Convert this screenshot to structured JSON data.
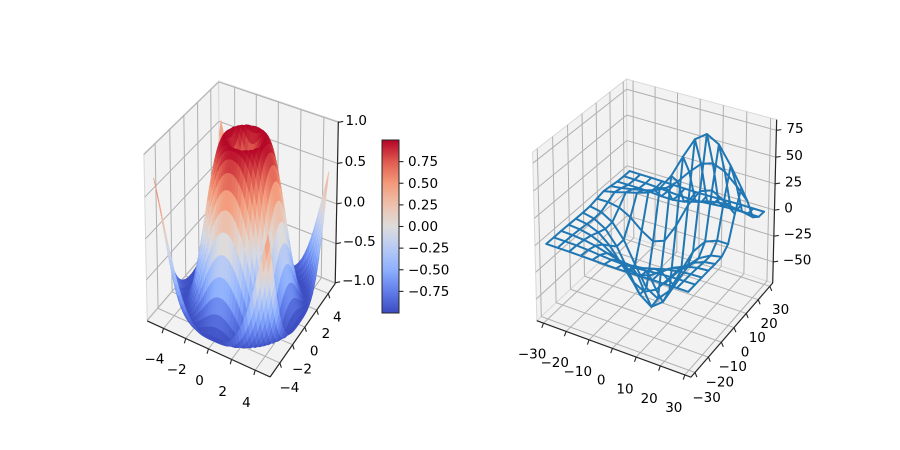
{
  "figure": {
    "background": "#ffffff"
  },
  "view": {
    "elev": 23.5,
    "azim": -60,
    "dist": 10,
    "box_aspect": [
      1.1429,
      1.1429,
      0.8571
    ]
  },
  "colors": {
    "background": "#ffffff",
    "pane_fill": "#f2f2f2",
    "pane_edge": "#d9d9d9",
    "grid_line": "#b0b0b0",
    "axis_line": "#262626",
    "tick_label": "#000000",
    "wireframe_line": "#1f77b4",
    "colorbar_outline": "#262626"
  },
  "colormap": {
    "name": "coolwarm",
    "stops": [
      [
        0.0,
        "#3b4cc0"
      ],
      [
        0.125,
        "#617dea"
      ],
      [
        0.25,
        "#8db0fe"
      ],
      [
        0.375,
        "#b7caf5"
      ],
      [
        0.5,
        "#dddcdc"
      ],
      [
        0.625,
        "#edc1ad"
      ],
      [
        0.75,
        "#f49a7a"
      ],
      [
        0.875,
        "#df5b4f"
      ],
      [
        1.0,
        "#b40426"
      ]
    ]
  },
  "chart_data": [
    {
      "id": "surface",
      "type": "surface",
      "title": "",
      "z_function": "z = sin(sqrt(x^2 + y^2))",
      "formula_id": "radial_sine",
      "x_grid": {
        "start": -5,
        "stop": 4.75,
        "num": 40
      },
      "y_grid": {
        "start": -5,
        "stop": 4.75,
        "num": 40
      },
      "xlim": [
        -5.49,
        5.24
      ],
      "ylim": [
        -5.49,
        5.24
      ],
      "zlim": [
        -1.01,
        1.01
      ],
      "color_norm": [
        -1,
        1
      ],
      "colormap": "coolwarm",
      "grid": true,
      "xticks": {
        "values": [
          -4,
          -2,
          0,
          2,
          4
        ],
        "labels": [
          "−4",
          "−2",
          "0",
          "2",
          "4"
        ]
      },
      "yticks": {
        "values": [
          -4,
          -2,
          0,
          2,
          4
        ],
        "labels": [
          "−4",
          "−2",
          "0",
          "2",
          "4"
        ]
      },
      "zticks": {
        "values": [
          -1.0,
          -0.5,
          0.0,
          0.5,
          1.0
        ],
        "labels": [
          "−1.0",
          "−0.5",
          "0.0",
          "0.5",
          "1.0"
        ]
      }
    },
    {
      "id": "wireframe",
      "type": "wireframe",
      "title": "",
      "z_function": "z = 500*( exp(-(((x/10-1)/1.5)^2+((y/10-1)/0.5)^2)/2)/(2*pi*0.75) - exp(-((x/10)^2+(y/10)^2)/2)/(2*pi) )",
      "formula_id": "two_gaussians",
      "x_lattice": [
        -30,
        -25,
        -20,
        -15,
        -10,
        -5,
        0,
        5,
        10,
        15,
        20,
        25,
        29.5
      ],
      "y_lattice": [
        -30,
        -25,
        -20,
        -15,
        -10,
        -5,
        0,
        5,
        10,
        15,
        20,
        25,
        29.5
      ],
      "xlim": [
        -32.98,
        32.48
      ],
      "ylim": [
        -32.98,
        32.48
      ],
      "zlim": [
        -70.7,
        84.8
      ],
      "line_color": "#1f77b4",
      "grid": true,
      "xticks": {
        "values": [
          -30,
          -20,
          -10,
          0,
          10,
          20,
          30
        ],
        "labels": [
          "−30",
          "−20",
          "−10",
          "0",
          "10",
          "20",
          "30"
        ]
      },
      "yticks": {
        "values": [
          -30,
          -20,
          -10,
          0,
          10,
          20,
          30
        ],
        "labels": [
          "−30",
          "−20",
          "−10",
          "0",
          "10",
          "20",
          "30"
        ]
      },
      "zticks": {
        "values": [
          -50,
          -25,
          0,
          25,
          50,
          75
        ],
        "labels": [
          "−50",
          "−25",
          "0",
          "25",
          "50",
          "75"
        ]
      }
    }
  ],
  "colorbar": {
    "vmin": -1,
    "vmax": 1,
    "colormap": "coolwarm",
    "ticks": {
      "values": [
        -0.75,
        -0.5,
        -0.25,
        0,
        0.25,
        0.5,
        0.75
      ],
      "labels": [
        "−0.75",
        "−0.50",
        "−0.25",
        "0.00",
        "0.25",
        "0.50",
        "0.75"
      ]
    }
  }
}
